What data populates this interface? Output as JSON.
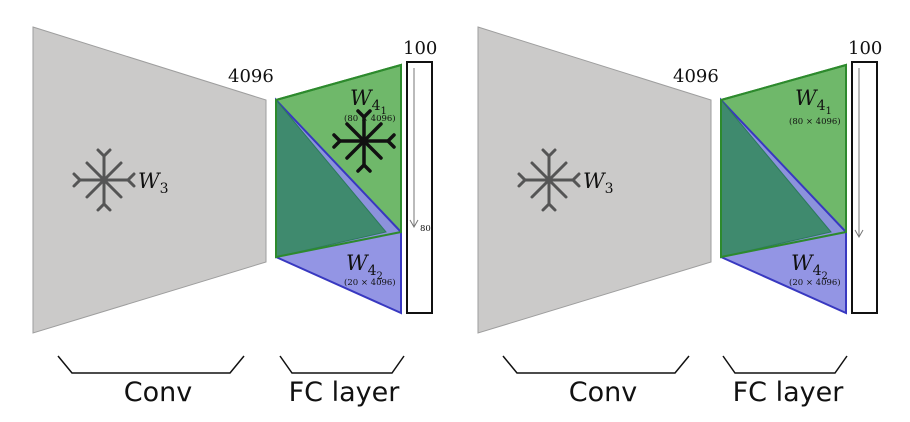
{
  "panels": [
    {
      "conv_weight": {
        "base": "W",
        "sub": "3"
      },
      "conv_output_size": "4096",
      "fc_output_size": "100",
      "split_marker": "80",
      "w41": {
        "base": "W",
        "sub": "4",
        "subsub": "1",
        "dims": "(80 × 4096)"
      },
      "w42": {
        "base": "W",
        "sub": "4",
        "subsub": "2",
        "dims": "(20 × 4096)"
      },
      "conv_label": "Conv",
      "fc_label": "FC layer",
      "conv_frozen": true,
      "w41_frozen": true
    },
    {
      "conv_weight": {
        "base": "W",
        "sub": "3"
      },
      "conv_output_size": "4096",
      "fc_output_size": "100",
      "w41": {
        "base": "W",
        "sub": "4",
        "subsub": "1",
        "dims": "(80 × 4096)"
      },
      "w42": {
        "base": "W",
        "sub": "4",
        "subsub": "2",
        "dims": "(20 × 4096)"
      },
      "conv_label": "Conv",
      "fc_label": "FC layer",
      "conv_frozen": true,
      "w41_frozen": false
    }
  ],
  "colors": {
    "conv_fill": "#cbcac9",
    "conv_stroke": "#9e9e9e",
    "w41_fill": "#6fb86a",
    "w41_stroke": "#2d8a2d",
    "w42_fill": "#8d8fe3",
    "w42_stroke": "#3838c0",
    "overlap_fill": "#3f8a6e"
  },
  "icons": [
    "snowflake-icon"
  ]
}
